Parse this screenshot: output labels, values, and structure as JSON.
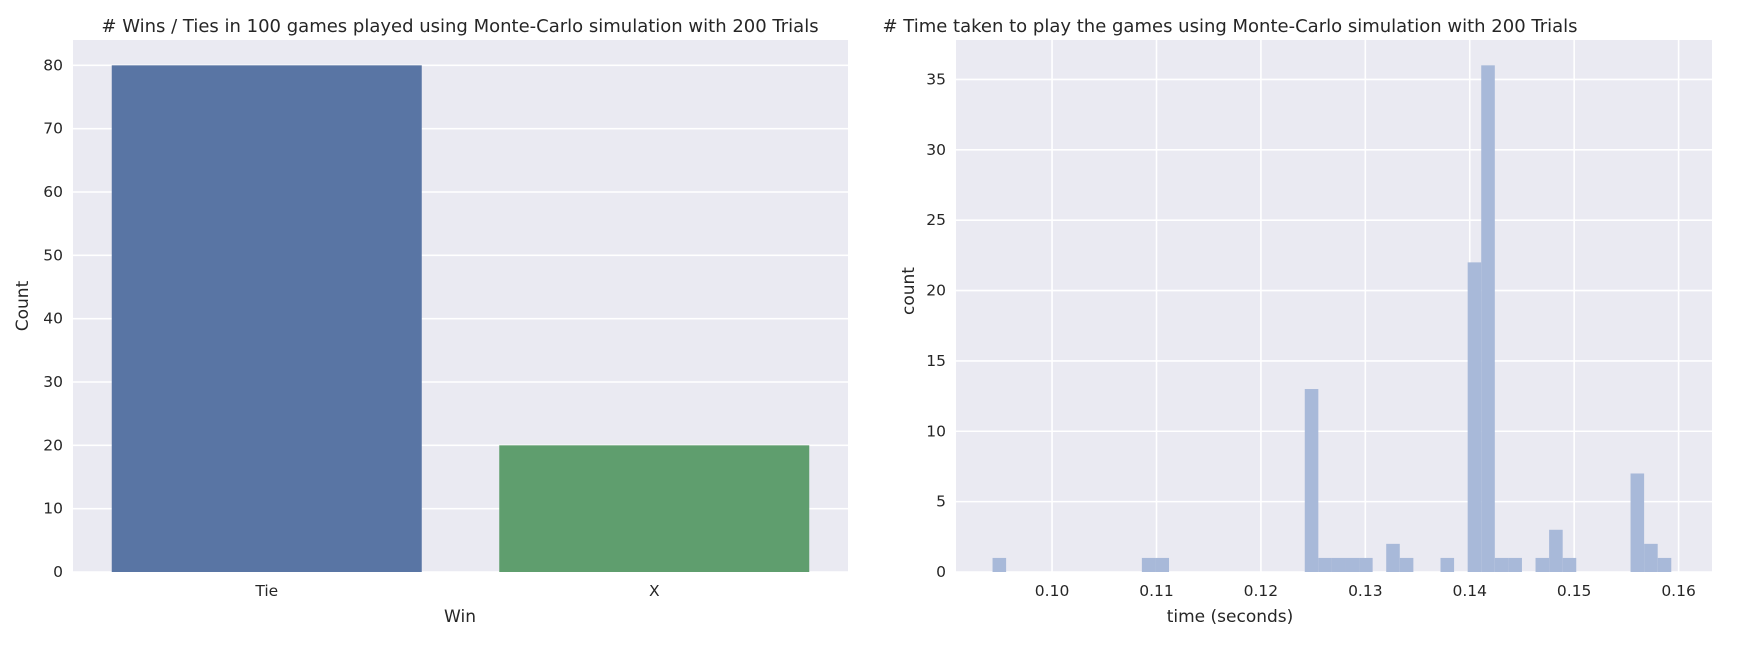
{
  "chart_data": [
    {
      "type": "bar",
      "title": "# Wins / Ties in 100 games played using Monte-Carlo simulation with 200 Trials",
      "xlabel": "Win",
      "ylabel": "Count",
      "categories": [
        "Tie",
        "X"
      ],
      "values": [
        80,
        20
      ],
      "colors": [
        "#5975A4",
        "#5F9E6E"
      ],
      "ylim": [
        0,
        84
      ],
      "yticks": [
        0,
        10,
        20,
        30,
        40,
        50,
        60,
        70,
        80
      ],
      "grid": true
    },
    {
      "type": "bar",
      "title": "# Time taken to play the games using Monte-Carlo simulation with 200 Trials",
      "xlabel": "time (seconds)",
      "ylabel": "count",
      "color": "#A8B9D9",
      "bin_width": 0.0013,
      "bins": [
        {
          "x": 0.0943,
          "count": 1
        },
        {
          "x": 0.1086,
          "count": 1
        },
        {
          "x": 0.1099,
          "count": 1
        },
        {
          "x": 0.1242,
          "count": 13
        },
        {
          "x": 0.1255,
          "count": 1
        },
        {
          "x": 0.1268,
          "count": 1
        },
        {
          "x": 0.1281,
          "count": 1
        },
        {
          "x": 0.1294,
          "count": 1
        },
        {
          "x": 0.132,
          "count": 2
        },
        {
          "x": 0.1333,
          "count": 1
        },
        {
          "x": 0.1372,
          "count": 1
        },
        {
          "x": 0.1398,
          "count": 22
        },
        {
          "x": 0.1411,
          "count": 36
        },
        {
          "x": 0.1424,
          "count": 1
        },
        {
          "x": 0.1437,
          "count": 1
        },
        {
          "x": 0.1463,
          "count": 1
        },
        {
          "x": 0.1476,
          "count": 3
        },
        {
          "x": 0.1489,
          "count": 1
        },
        {
          "x": 0.1554,
          "count": 7
        },
        {
          "x": 0.1567,
          "count": 2
        },
        {
          "x": 0.158,
          "count": 1
        }
      ],
      "xlim": [
        0.0908,
        0.1632
      ],
      "ylim": [
        0,
        37.8
      ],
      "xticks": [
        "0.10",
        "0.11",
        "0.12",
        "0.13",
        "0.14",
        "0.15",
        "0.16"
      ],
      "yticks": [
        0,
        5,
        10,
        15,
        20,
        25,
        30,
        35
      ],
      "grid": true
    }
  ]
}
